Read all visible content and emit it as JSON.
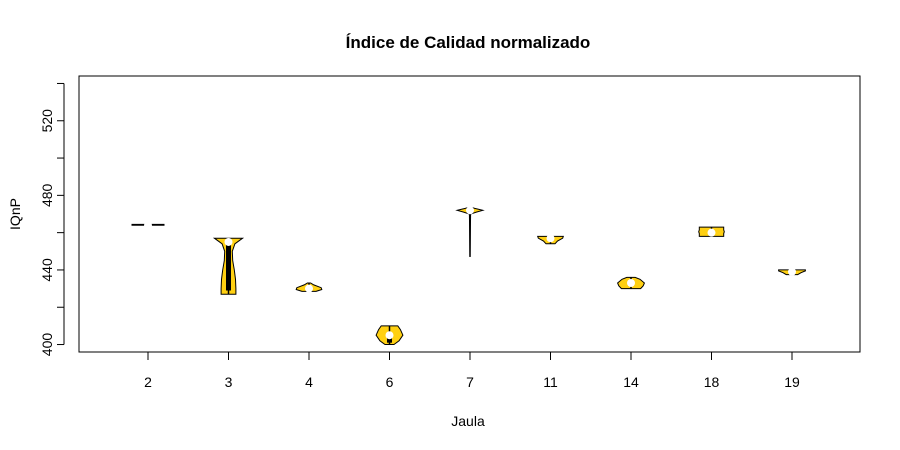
{
  "chart_data": {
    "type": "violin",
    "title": "Índice de Calidad normalizado",
    "xlabel": "Jaula",
    "ylabel": "IQnP",
    "ylim": [
      396,
      544
    ],
    "yticks": [
      400,
      440,
      480,
      520
    ],
    "fill_color": "#FFD012",
    "grid": false,
    "categories": [
      "2",
      "3",
      "4",
      "6",
      "7",
      "11",
      "14",
      "18",
      "19"
    ],
    "groups": [
      {
        "name": "2",
        "min": 464,
        "q1": 464,
        "median": 464,
        "q3": 464,
        "max": 464,
        "profile": [
          [
            464,
            0.5
          ],
          [
            464.4,
            0.5
          ]
        ]
      },
      {
        "name": "3",
        "min": 427,
        "q1": 429,
        "median": 455,
        "q3": 455,
        "max": 457,
        "profile": [
          [
            427,
            0.23
          ],
          [
            430,
            0.23
          ],
          [
            435,
            0.22
          ],
          [
            440,
            0.18
          ],
          [
            445,
            0.13
          ],
          [
            450,
            0.12
          ],
          [
            454,
            0.2
          ],
          [
            457,
            0.44
          ]
        ]
      },
      {
        "name": "4",
        "min": 428,
        "q1": 429,
        "median": 430,
        "q3": 431,
        "max": 433,
        "profile": [
          [
            428.5,
            0.22
          ],
          [
            429.5,
            0.4
          ],
          [
            430.5,
            0.38
          ],
          [
            432,
            0.15
          ],
          [
            433,
            0.05
          ]
        ]
      },
      {
        "name": "6",
        "min": 400,
        "q1": 401,
        "median": 405,
        "q3": 406,
        "max": 410,
        "profile": [
          [
            400,
            0.14
          ],
          [
            402,
            0.3
          ],
          [
            405,
            0.42
          ],
          [
            408,
            0.34
          ],
          [
            410,
            0.26
          ]
        ]
      },
      {
        "name": "7",
        "min": 447,
        "q1": 472,
        "median": 472,
        "q3": 472,
        "max": 473,
        "profile": [
          [
            447,
            0
          ],
          [
            470,
            0.02
          ],
          [
            471,
            0.2
          ],
          [
            472,
            0.4
          ],
          [
            473,
            0.15
          ],
          [
            473.5,
            0.05
          ]
        ]
      },
      {
        "name": "11",
        "min": 454,
        "q1": 456,
        "median": 457,
        "q3": 457,
        "max": 458,
        "profile": [
          [
            454,
            0.14
          ],
          [
            455.5,
            0.22
          ],
          [
            457,
            0.38
          ],
          [
            458,
            0.4
          ]
        ]
      },
      {
        "name": "14",
        "min": 430,
        "q1": 432,
        "median": 433,
        "q3": 434,
        "max": 436,
        "profile": [
          [
            430,
            0.3
          ],
          [
            431.5,
            0.38
          ],
          [
            433,
            0.42
          ],
          [
            435,
            0.28
          ],
          [
            436,
            0.13
          ]
        ]
      },
      {
        "name": "18",
        "min": 458,
        "q1": 459,
        "median": 460,
        "q3": 461,
        "max": 463,
        "profile": [
          [
            458,
            0.38
          ],
          [
            459.5,
            0.38
          ],
          [
            460.5,
            0.4
          ],
          [
            461.5,
            0.38
          ],
          [
            463,
            0.38
          ]
        ]
      },
      {
        "name": "19",
        "min": 437,
        "q1": 438,
        "median": 439,
        "q3": 439,
        "max": 440,
        "profile": [
          [
            437.5,
            0.18
          ],
          [
            438.5,
            0.28
          ],
          [
            439.5,
            0.42
          ],
          [
            440,
            0.42
          ]
        ]
      }
    ]
  }
}
